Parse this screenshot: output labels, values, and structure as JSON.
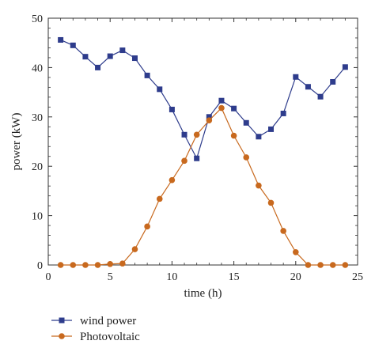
{
  "chart_data": {
    "type": "line",
    "xlabel": "time (h)",
    "ylabel": "power (kW)",
    "xlim": [
      0,
      25
    ],
    "ylim": [
      0,
      50
    ],
    "xticks": [
      0,
      5,
      10,
      15,
      20,
      25
    ],
    "yticks": [
      0,
      10,
      20,
      30,
      40,
      50
    ],
    "grid": false,
    "legend_position": "bottom-left-outside",
    "x": [
      1,
      2,
      3,
      4,
      5,
      6,
      7,
      8,
      9,
      10,
      11,
      12,
      13,
      14,
      15,
      16,
      17,
      18,
      19,
      20,
      21,
      22,
      23,
      24
    ],
    "series": [
      {
        "name": "wind power",
        "color": "#2e3c8c",
        "marker": "square",
        "values": [
          45.6,
          44.5,
          42.2,
          40.0,
          42.3,
          43.5,
          41.9,
          38.4,
          35.6,
          31.5,
          26.4,
          21.6,
          30.0,
          33.3,
          31.7,
          28.8,
          26.0,
          27.5,
          30.7,
          38.1,
          36.1,
          34.1,
          37.1,
          40.1
        ]
      },
      {
        "name": "Photovoltaic",
        "color": "#c8691e",
        "marker": "circle",
        "values": [
          0,
          0,
          0,
          0,
          0.2,
          0.3,
          3.2,
          7.8,
          13.4,
          17.2,
          21.1,
          26.4,
          29.3,
          31.8,
          26.2,
          21.8,
          16.1,
          12.6,
          6.9,
          2.6,
          0,
          0,
          0,
          0
        ]
      }
    ]
  }
}
